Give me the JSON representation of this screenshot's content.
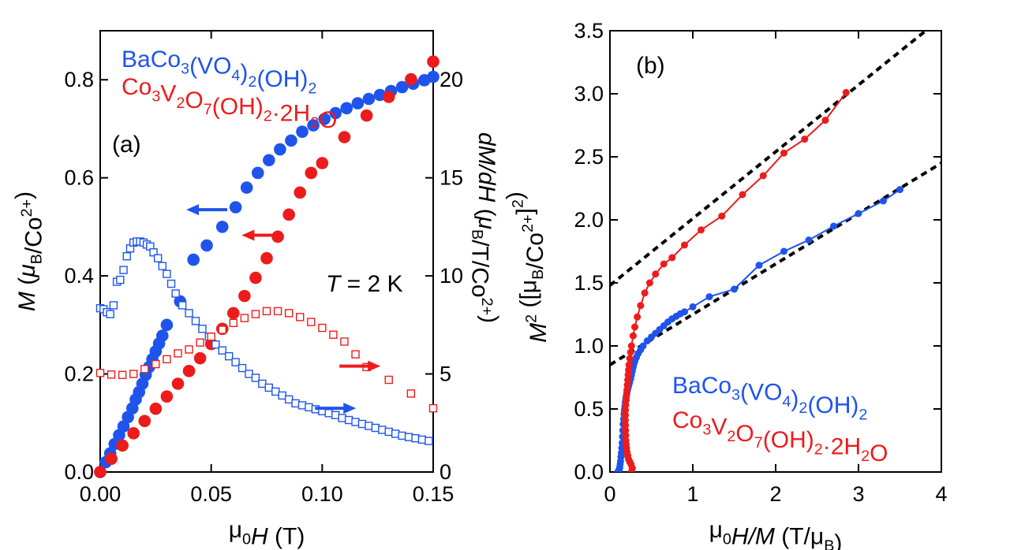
{
  "colors": {
    "blue": "#1f54ec",
    "red": "#ec1c1c",
    "fit": "#000000",
    "axis": "#000000"
  },
  "chart_data": [
    {
      "type": "scatter",
      "panel_label": "(a)",
      "annotation": {
        "prefix": "T",
        "text": " = 2 K"
      },
      "xlabel": {
        "pre": "μ",
        "sub": "0",
        "italic": "H",
        "post": " (T)"
      },
      "ylabel_left": {
        "italic": "M",
        "open": " (",
        "mu": "μ",
        "sub": "B",
        "mid": "/Co",
        "sup": "2+",
        "close": ")"
      },
      "ylabel_right": {
        "italic": "dM/dH",
        "open": " (",
        "mu": "μ",
        "sub": "B",
        "mid": "/T/Co",
        "sup": "2+",
        "close": ")"
      },
      "xlim": [
        0,
        0.15
      ],
      "ylim_left": [
        0,
        0.9
      ],
      "ylim_right": [
        0,
        22.5
      ],
      "xticks": [
        "0.00",
        "0.05",
        "0.10",
        "0.15"
      ],
      "yticks_left": [
        "0.0",
        "0.2",
        "0.4",
        "0.6",
        "0.8"
      ],
      "yticks_right": [
        "0",
        "5",
        "10",
        "15",
        "20"
      ],
      "legend": [
        {
          "segments": [
            [
              "BaCo",
              ""
            ],
            [
              "3",
              "sub"
            ],
            [
              "(VO",
              ""
            ],
            [
              "4",
              "sub"
            ],
            [
              ")",
              ""
            ],
            [
              "2",
              "sub"
            ],
            [
              "(OH)",
              ""
            ],
            [
              "2",
              "sub"
            ]
          ],
          "color": "blue"
        },
        {
          "segments": [
            [
              "Co",
              ""
            ],
            [
              "3",
              "sub"
            ],
            [
              "V",
              ""
            ],
            [
              "2",
              "sub"
            ],
            [
              "O",
              ""
            ],
            [
              "7",
              "sub"
            ],
            [
              "(OH)",
              ""
            ],
            [
              "2",
              "sub"
            ],
            [
              "·2H",
              ""
            ],
            [
              "2",
              "sub"
            ],
            [
              "O",
              ""
            ]
          ],
          "color": "red"
        }
      ],
      "series": [
        {
          "label": "BaCo3(VO4)2(OH)2 M(H)",
          "color": "blue",
          "axis": "left",
          "marker": "filled-circle",
          "x": [
            0.0,
            0.0025,
            0.0045,
            0.0065,
            0.0085,
            0.0105,
            0.0125,
            0.0145,
            0.016,
            0.0175,
            0.019,
            0.0205,
            0.022,
            0.0235,
            0.025,
            0.0265,
            0.028,
            0.03,
            0.036,
            0.042,
            0.048,
            0.055,
            0.061,
            0.066,
            0.071,
            0.076,
            0.081,
            0.086,
            0.091,
            0.096,
            0.101,
            0.106,
            0.111,
            0.116,
            0.121,
            0.126,
            0.131,
            0.136,
            0.141,
            0.146,
            0.15
          ],
          "y": [
            0.0,
            0.02,
            0.038,
            0.057,
            0.075,
            0.093,
            0.112,
            0.13,
            0.148,
            0.163,
            0.18,
            0.198,
            0.214,
            0.23,
            0.246,
            0.262,
            0.278,
            0.3,
            0.348,
            0.433,
            0.462,
            0.5,
            0.54,
            0.58,
            0.61,
            0.636,
            0.658,
            0.676,
            0.694,
            0.707,
            0.72,
            0.732,
            0.742,
            0.752,
            0.761,
            0.769,
            0.777,
            0.785,
            0.792,
            0.799,
            0.806
          ]
        },
        {
          "label": "Co3V2O7(OH)2·2H2O M(H)",
          "color": "red",
          "axis": "left",
          "marker": "filled-circle",
          "x": [
            0.0,
            0.005,
            0.01,
            0.015,
            0.02,
            0.025,
            0.03,
            0.035,
            0.04,
            0.045,
            0.05,
            0.055,
            0.06,
            0.065,
            0.07,
            0.075,
            0.08,
            0.085,
            0.09,
            0.095,
            0.1,
            0.11,
            0.12,
            0.13,
            0.14,
            0.15
          ],
          "y": [
            0.0,
            0.027,
            0.054,
            0.079,
            0.104,
            0.129,
            0.154,
            0.18,
            0.206,
            0.232,
            0.261,
            0.292,
            0.324,
            0.359,
            0.396,
            0.436,
            0.48,
            0.525,
            0.57,
            0.61,
            0.63,
            0.683,
            0.727,
            0.765,
            0.801,
            0.837
          ]
        },
        {
          "label": "BaCo3(VO4)2(OH)2 dM/dH",
          "color": "blue",
          "axis": "right",
          "marker": "open-square",
          "x": [
            0.0,
            0.0015,
            0.003,
            0.0045,
            0.006,
            0.0075,
            0.009,
            0.0105,
            0.012,
            0.0135,
            0.015,
            0.0165,
            0.018,
            0.0195,
            0.021,
            0.0225,
            0.024,
            0.026,
            0.028,
            0.03,
            0.032,
            0.034,
            0.037,
            0.04,
            0.043,
            0.046,
            0.049,
            0.052,
            0.055,
            0.058,
            0.061,
            0.064,
            0.067,
            0.07,
            0.073,
            0.076,
            0.079,
            0.082,
            0.085,
            0.088,
            0.091,
            0.094,
            0.097,
            0.1,
            0.103,
            0.106,
            0.109,
            0.112,
            0.115,
            0.118,
            0.121,
            0.124,
            0.127,
            0.13,
            0.133,
            0.136,
            0.139,
            0.142,
            0.145,
            0.148
          ],
          "y": [
            8.35,
            8.3,
            8.15,
            8.05,
            8.5,
            9.7,
            9.8,
            10.3,
            11.0,
            11.4,
            11.7,
            11.75,
            11.75,
            11.7,
            11.6,
            11.5,
            11.2,
            10.9,
            10.5,
            10.1,
            9.6,
            9.1,
            8.5,
            8.1,
            7.7,
            7.3,
            6.9,
            6.5,
            6.2,
            5.9,
            5.6,
            5.3,
            5.0,
            4.8,
            4.5,
            4.3,
            4.1,
            3.9,
            3.7,
            3.5,
            3.4,
            3.3,
            3.2,
            3.1,
            3.0,
            2.9,
            2.75,
            2.65,
            2.55,
            2.45,
            2.35,
            2.25,
            2.15,
            2.05,
            1.95,
            1.85,
            1.78,
            1.72,
            1.65,
            1.58
          ]
        },
        {
          "label": "Co3V2O7(OH)2·2H2O dM/dH",
          "color": "red",
          "axis": "right",
          "marker": "open-square",
          "x": [
            0.0,
            0.005,
            0.01,
            0.015,
            0.02,
            0.025,
            0.03,
            0.035,
            0.04,
            0.045,
            0.05,
            0.055,
            0.06,
            0.065,
            0.07,
            0.075,
            0.08,
            0.085,
            0.09,
            0.095,
            0.1,
            0.105,
            0.11,
            0.115,
            0.12,
            0.13,
            0.14,
            0.15
          ],
          "y": [
            5.05,
            4.97,
            4.95,
            5.0,
            5.25,
            5.5,
            5.75,
            6.05,
            6.25,
            6.6,
            6.9,
            7.25,
            7.6,
            7.85,
            8.05,
            8.2,
            8.2,
            8.1,
            7.9,
            7.65,
            7.35,
            7.0,
            6.65,
            6.0,
            5.35,
            4.7,
            4.0,
            3.25
          ]
        }
      ],
      "arrows": [
        {
          "color": "blue",
          "dir": "left",
          "x": 0.048,
          "y": 0.535,
          "axis": "left"
        },
        {
          "color": "red",
          "dir": "left",
          "x": 0.073,
          "y": 0.483,
          "axis": "left"
        },
        {
          "color": "red",
          "dir": "right",
          "x": 0.117,
          "y": 5.4,
          "axis": "right"
        },
        {
          "color": "blue",
          "dir": "right",
          "x": 0.106,
          "y": 3.25,
          "axis": "right"
        }
      ]
    },
    {
      "type": "line",
      "panel_label": "(b)",
      "xlabel": {
        "pre": "μ",
        "sub": "0",
        "italic": "H/M",
        "post": " (T/μ",
        "sub2": "B",
        "post2": ")"
      },
      "ylabel": {
        "italic": "M",
        "sup": "2",
        "open": " ([μ",
        "sub": "B",
        "mid": "/Co",
        "sup2": "2+",
        "close": "]",
        "sup3": "2",
        "end": ")"
      },
      "xlim": [
        0,
        4
      ],
      "ylim": [
        0,
        3.5
      ],
      "xticks": [
        "0",
        "1",
        "2",
        "3",
        "4"
      ],
      "yticks": [
        "0.0",
        "0.5",
        "1.0",
        "1.5",
        "2.0",
        "2.5",
        "3.0",
        "3.5"
      ],
      "legend": [
        {
          "segments": [
            [
              "BaCo",
              ""
            ],
            [
              "3",
              "sub"
            ],
            [
              "(VO",
              ""
            ],
            [
              "4",
              "sub"
            ],
            [
              ")",
              ""
            ],
            [
              "2",
              "sub"
            ],
            [
              "(OH)",
              ""
            ],
            [
              "2",
              "sub"
            ]
          ],
          "color": "blue"
        },
        {
          "segments": [
            [
              "Co",
              ""
            ],
            [
              "3",
              "sub"
            ],
            [
              "V",
              ""
            ],
            [
              "2",
              "sub"
            ],
            [
              "O",
              ""
            ],
            [
              "7",
              "sub"
            ],
            [
              "(OH)",
              ""
            ],
            [
              "2",
              "sub"
            ],
            [
              "·2H",
              ""
            ],
            [
              "2",
              "sub"
            ],
            [
              "O",
              ""
            ]
          ],
          "color": "red"
        }
      ],
      "fit_lines": [
        {
          "name": "fit-blue",
          "intercept": 0.85,
          "slope": 0.4
        },
        {
          "name": "fit-red",
          "intercept": 1.48,
          "slope": 0.53
        }
      ],
      "series": [
        {
          "label": "BaCo3(VO4)2(OH)2",
          "color": "blue",
          "x": [
            0.095,
            0.098,
            0.1,
            0.104,
            0.108,
            0.113,
            0.118,
            0.123,
            0.128,
            0.133,
            0.138,
            0.143,
            0.148,
            0.152,
            0.156,
            0.16,
            0.165,
            0.17,
            0.175,
            0.18,
            0.185,
            0.19,
            0.195,
            0.2,
            0.205,
            0.212,
            0.22,
            0.228,
            0.237,
            0.25,
            0.26,
            0.27,
            0.28,
            0.29,
            0.3,
            0.32,
            0.34,
            0.37,
            0.4,
            0.45,
            0.5,
            0.55,
            0.6,
            0.65,
            0.7,
            0.75,
            0.8,
            0.85,
            0.9,
            1.0,
            1.2,
            1.5,
            1.8,
            2.1,
            2.4,
            2.7,
            3.0,
            3.3,
            3.5
          ],
          "y": [
            0.0,
            0.002,
            0.004,
            0.008,
            0.012,
            0.02,
            0.035,
            0.06,
            0.085,
            0.12,
            0.15,
            0.19,
            0.23,
            0.28,
            0.33,
            0.38,
            0.42,
            0.46,
            0.49,
            0.52,
            0.55,
            0.57,
            0.59,
            0.61,
            0.63,
            0.65,
            0.67,
            0.69,
            0.71,
            0.74,
            0.77,
            0.8,
            0.83,
            0.86,
            0.88,
            0.91,
            0.94,
            0.97,
            1.0,
            1.04,
            1.07,
            1.1,
            1.13,
            1.16,
            1.19,
            1.215,
            1.235,
            1.255,
            1.27,
            1.31,
            1.39,
            1.45,
            1.64,
            1.75,
            1.84,
            1.95,
            2.05,
            2.15,
            2.24
          ]
        },
        {
          "label": "Co3V2O7(OH)2·2H2O",
          "color": "red",
          "x": [
            0.26,
            0.27,
            0.255,
            0.24,
            0.225,
            0.215,
            0.205,
            0.2,
            0.195,
            0.192,
            0.19,
            0.188,
            0.187,
            0.186,
            0.186,
            0.187,
            0.19,
            0.195,
            0.2,
            0.205,
            0.21,
            0.215,
            0.22,
            0.225,
            0.23,
            0.24,
            0.25,
            0.26,
            0.28,
            0.3,
            0.33,
            0.37,
            0.42,
            0.48,
            0.55,
            0.65,
            0.75,
            0.9,
            1.1,
            1.35,
            1.6,
            1.85,
            2.1,
            2.35,
            2.6,
            2.85
          ],
          "y": [
            0.0,
            0.03,
            0.06,
            0.08,
            0.1,
            0.13,
            0.16,
            0.19,
            0.22,
            0.25,
            0.29,
            0.33,
            0.37,
            0.41,
            0.45,
            0.49,
            0.53,
            0.57,
            0.61,
            0.65,
            0.69,
            0.73,
            0.77,
            0.81,
            0.85,
            0.9,
            0.95,
            1.0,
            1.08,
            1.15,
            1.23,
            1.32,
            1.42,
            1.5,
            1.57,
            1.65,
            1.7,
            1.8,
            1.92,
            2.03,
            2.2,
            2.35,
            2.53,
            2.64,
            2.79,
            3.01
          ]
        }
      ]
    }
  ]
}
